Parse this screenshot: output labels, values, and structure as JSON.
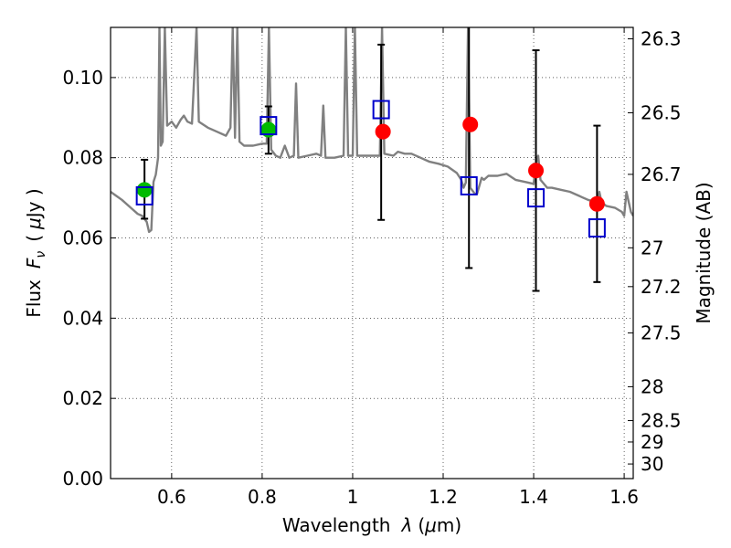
{
  "chart_data": {
    "type": "scatter",
    "title": "",
    "xlabel_prefix": "Wavelength",
    "xlabel_symbol": "λ",
    "xlabel_unit_open": "(",
    "xlabel_unit_mu": "μ",
    "xlabel_unit_rest": "m)",
    "ylabel_prefix": "Flux",
    "ylabel_symbol": "F",
    "ylabel_sub": "ν",
    "ylabel_unit_open": "(",
    "ylabel_unit_mu": "μ",
    "ylabel_unit_rest": "Jy )",
    "y2label": "Magnitude (AB)",
    "xlim": [
      0.465,
      1.62
    ],
    "ylim": [
      0.0,
      0.1125
    ],
    "grid": true,
    "x_ticks": [
      {
        "value": 0.6,
        "label": "0.6"
      },
      {
        "value": 0.8,
        "label": "0.8"
      },
      {
        "value": 1.0,
        "label": "1"
      },
      {
        "value": 1.2,
        "label": "1.2"
      },
      {
        "value": 1.4,
        "label": "1.4"
      },
      {
        "value": 1.6,
        "label": "1.6"
      }
    ],
    "y_ticks": [
      {
        "value": 0.0,
        "label": "0.00"
      },
      {
        "value": 0.02,
        "label": "0.02"
      },
      {
        "value": 0.04,
        "label": "0.04"
      },
      {
        "value": 0.06,
        "label": "0.06"
      },
      {
        "value": 0.08,
        "label": "0.08"
      },
      {
        "value": 0.1,
        "label": "0.10"
      }
    ],
    "mag_ticks": [
      {
        "mag": 26.3,
        "label": "26.3"
      },
      {
        "mag": 26.5,
        "label": "26.5"
      },
      {
        "mag": 26.7,
        "label": "26.7"
      },
      {
        "mag": 27.0,
        "label": "27"
      },
      {
        "mag": 27.2,
        "label": "27.2"
      },
      {
        "mag": 27.5,
        "label": "27.5"
      },
      {
        "mag": 28.0,
        "label": "28"
      },
      {
        "mag": 28.5,
        "label": "28.5"
      },
      {
        "mag": 29.0,
        "label": "29"
      },
      {
        "mag": 30.0,
        "label": "30"
      }
    ],
    "series": [
      {
        "name": "observed",
        "marker": "circle",
        "color": "#ff0000",
        "points": [
          {
            "x": 1.067,
            "y": 0.0865
          },
          {
            "x": 1.26,
            "y": 0.0883
          },
          {
            "x": 1.405,
            "y": 0.0768
          },
          {
            "x": 1.54,
            "y": 0.0685
          }
        ]
      },
      {
        "name": "observed-optical",
        "marker": "circle",
        "color": "#00bb00",
        "points": [
          {
            "x": 0.54,
            "y": 0.072
          },
          {
            "x": 0.814,
            "y": 0.087
          }
        ]
      },
      {
        "name": "model",
        "marker": "square-open",
        "color": "#0000cc",
        "errorbar_color": "#000000",
        "points": [
          {
            "x": 0.54,
            "y": 0.0705,
            "ylo": 0.0648,
            "yhi": 0.0795
          },
          {
            "x": 0.814,
            "y": 0.088,
            "ylo": 0.081,
            "yhi": 0.0928
          },
          {
            "x": 1.063,
            "y": 0.092,
            "ylo": 0.0645,
            "yhi": 0.1082
          },
          {
            "x": 1.257,
            "y": 0.073,
            "ylo": 0.0525,
            "yhi": 0.1125
          },
          {
            "x": 1.405,
            "y": 0.07,
            "ylo": 0.0468,
            "yhi": 0.1068
          },
          {
            "x": 1.54,
            "y": 0.0625,
            "ylo": 0.049,
            "yhi": 0.088
          }
        ]
      },
      {
        "name": "template-spectrum",
        "type": "line",
        "color": "#808080",
        "points": [
          [
            0.465,
            0.0715
          ],
          [
            0.49,
            0.0695
          ],
          [
            0.51,
            0.0675
          ],
          [
            0.525,
            0.066
          ],
          [
            0.535,
            0.0655
          ],
          [
            0.545,
            0.064
          ],
          [
            0.55,
            0.0615
          ],
          [
            0.555,
            0.062
          ],
          [
            0.56,
            0.074
          ],
          [
            0.565,
            0.0758
          ],
          [
            0.57,
            0.08
          ],
          [
            0.573,
            0.1125
          ],
          [
            0.576,
            0.083
          ],
          [
            0.58,
            0.084
          ],
          [
            0.585,
            0.1125
          ],
          [
            0.59,
            0.088
          ],
          [
            0.6,
            0.089
          ],
          [
            0.61,
            0.0875
          ],
          [
            0.62,
            0.0895
          ],
          [
            0.627,
            0.0905
          ],
          [
            0.635,
            0.089
          ],
          [
            0.645,
            0.0885
          ],
          [
            0.655,
            0.1125
          ],
          [
            0.66,
            0.089
          ],
          [
            0.68,
            0.0875
          ],
          [
            0.7,
            0.0865
          ],
          [
            0.72,
            0.0855
          ],
          [
            0.73,
            0.0875
          ],
          [
            0.735,
            0.1125
          ],
          [
            0.74,
            0.085
          ],
          [
            0.745,
            0.1125
          ],
          [
            0.75,
            0.084
          ],
          [
            0.76,
            0.083
          ],
          [
            0.78,
            0.083
          ],
          [
            0.8,
            0.0835
          ],
          [
            0.81,
            0.0835
          ],
          [
            0.815,
            0.1125
          ],
          [
            0.82,
            0.082
          ],
          [
            0.83,
            0.0805
          ],
          [
            0.84,
            0.08
          ],
          [
            0.85,
            0.083
          ],
          [
            0.86,
            0.08
          ],
          [
            0.87,
            0.0805
          ],
          [
            0.875,
            0.0985
          ],
          [
            0.88,
            0.08
          ],
          [
            0.9,
            0.0805
          ],
          [
            0.92,
            0.081
          ],
          [
            0.93,
            0.0805
          ],
          [
            0.935,
            0.093
          ],
          [
            0.94,
            0.08
          ],
          [
            0.96,
            0.08
          ],
          [
            0.98,
            0.0805
          ],
          [
            0.985,
            0.1125
          ],
          [
            0.99,
            0.0805
          ],
          [
            1.0,
            0.0805
          ],
          [
            1.005,
            0.1125
          ],
          [
            1.01,
            0.0805
          ],
          [
            1.03,
            0.0805
          ],
          [
            1.05,
            0.0805
          ],
          [
            1.06,
            0.0805
          ],
          [
            1.065,
            0.1125
          ],
          [
            1.07,
            0.081
          ],
          [
            1.09,
            0.0805
          ],
          [
            1.1,
            0.0815
          ],
          [
            1.115,
            0.081
          ],
          [
            1.13,
            0.081
          ],
          [
            1.15,
            0.08
          ],
          [
            1.17,
            0.079
          ],
          [
            1.19,
            0.0785
          ],
          [
            1.21,
            0.0778
          ],
          [
            1.23,
            0.0762
          ],
          [
            1.24,
            0.0745
          ],
          [
            1.245,
            0.0725
          ],
          [
            1.25,
            0.0738
          ],
          [
            1.255,
            0.1125
          ],
          [
            1.26,
            0.0725
          ],
          [
            1.27,
            0.071
          ],
          [
            1.275,
            0.071
          ],
          [
            1.285,
            0.075
          ],
          [
            1.29,
            0.0745
          ],
          [
            1.3,
            0.0755
          ],
          [
            1.32,
            0.0755
          ],
          [
            1.34,
            0.076
          ],
          [
            1.36,
            0.0745
          ],
          [
            1.38,
            0.074
          ],
          [
            1.4,
            0.0735
          ],
          [
            1.405,
            0.0785
          ],
          [
            1.41,
            0.0805
          ],
          [
            1.415,
            0.0745
          ],
          [
            1.43,
            0.0725
          ],
          [
            1.44,
            0.0725
          ],
          [
            1.46,
            0.072
          ],
          [
            1.48,
            0.0715
          ],
          [
            1.5,
            0.0705
          ],
          [
            1.52,
            0.0695
          ],
          [
            1.54,
            0.0688
          ],
          [
            1.545,
            0.0715
          ],
          [
            1.55,
            0.069
          ],
          [
            1.56,
            0.068
          ],
          [
            1.58,
            0.0675
          ],
          [
            1.595,
            0.0665
          ],
          [
            1.6,
            0.0655
          ],
          [
            1.605,
            0.0715
          ],
          [
            1.61,
            0.069
          ],
          [
            1.615,
            0.0665
          ],
          [
            1.62,
            0.0655
          ]
        ]
      }
    ]
  }
}
